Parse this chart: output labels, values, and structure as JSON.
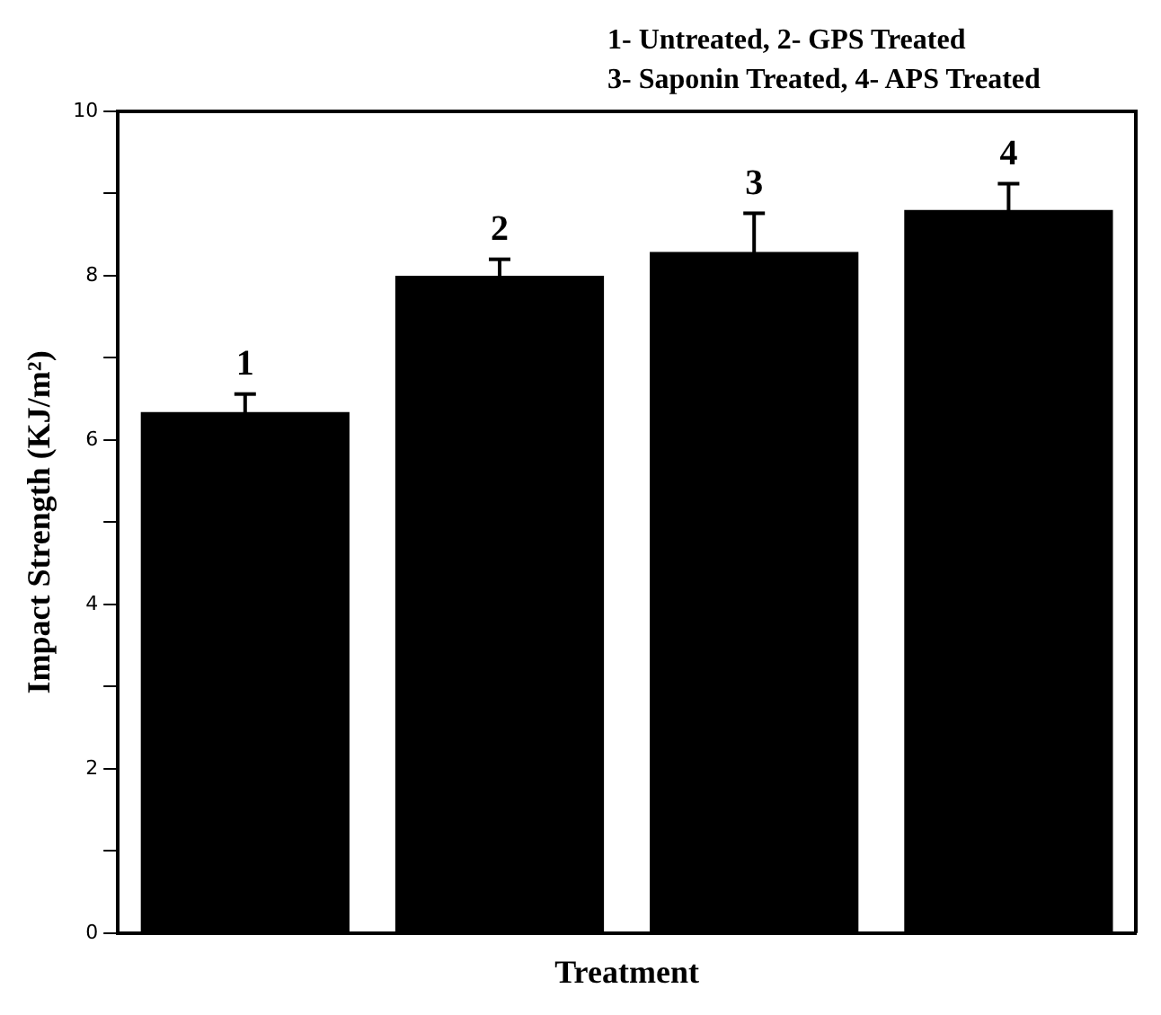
{
  "chart_data": {
    "type": "bar",
    "xlabel": "Treatment",
    "ylabel": "Impact Strength (KJ/m²)",
    "annotations": [
      "1- Untreated, 2- GPS Treated",
      "3- Saponin Treated, 4- APS Treated"
    ],
    "categories": [
      "1",
      "2",
      "3",
      "4"
    ],
    "values": [
      6.34,
      8.0,
      8.29,
      8.8
    ],
    "errors": [
      0.22,
      0.2,
      0.47,
      0.32
    ],
    "color": "#000000",
    "ylim": [
      0,
      10
    ],
    "yticks": [
      0,
      {
        "value": 1,
        "label": null
      },
      2,
      {
        "value": 3,
        "label": null
      },
      4,
      {
        "value": 5,
        "label": null
      },
      6,
      {
        "value": 7,
        "label": null
      },
      8,
      {
        "value": 9,
        "label": null
      },
      10
    ],
    "tick_labels": "y",
    "grid": false,
    "legend": false
  }
}
